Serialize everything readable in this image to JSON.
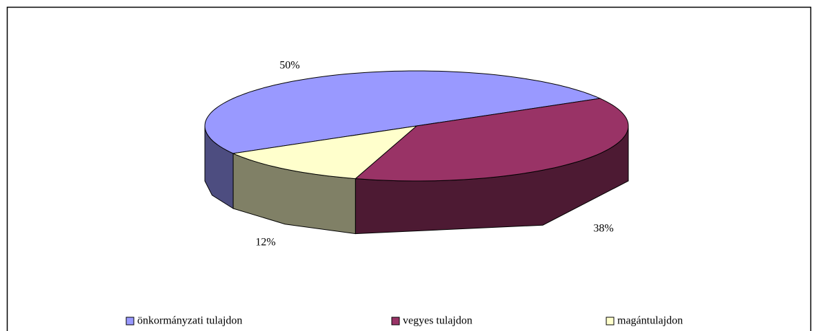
{
  "chart_data": {
    "type": "pie3d",
    "categories": [
      "önkormányzati tulajdon",
      "vegyes tulajdon",
      "magántulajdon"
    ],
    "values": [
      50,
      38,
      12
    ],
    "value_labels": [
      "50%",
      "38%",
      "12%"
    ],
    "colors": [
      "#9999ff",
      "#993366",
      "#ffffcc"
    ],
    "legend": "bottom"
  }
}
